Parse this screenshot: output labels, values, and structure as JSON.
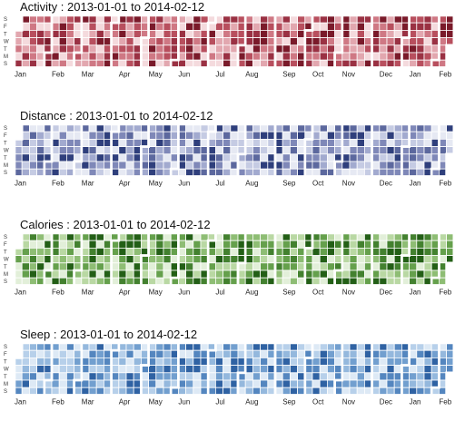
{
  "chart_data": [
    {
      "type": "heatmap",
      "title": "Activity :  2013-01-01 to 2014-02-12",
      "date_range": [
        "2013-01-01",
        "2014-02-12"
      ],
      "day_labels": [
        "S",
        "F",
        "T",
        "W",
        "T",
        "M",
        "S"
      ],
      "month_labels": [
        "Jan",
        "Feb",
        "Mar",
        "Apr",
        "May",
        "Jun",
        "Jul",
        "Aug",
        "Sep",
        "Oct",
        "Nov",
        "Dec",
        "Jan",
        "Feb"
      ],
      "palette": [
        "#f4dadd",
        "#e2a7af",
        "#cf7884",
        "#b84f5e",
        "#9a3143",
        "#7a1a2a"
      ],
      "seed": 11,
      "levels": 6
    },
    {
      "type": "heatmap",
      "title": "Distance :  2013-01-01 to 2014-02-12",
      "date_range": [
        "2013-01-01",
        "2014-02-12"
      ],
      "day_labels": [
        "S",
        "F",
        "T",
        "W",
        "T",
        "M",
        "S"
      ],
      "month_labels": [
        "Jan",
        "Feb",
        "Mar",
        "Apr",
        "May",
        "Jun",
        "Jul",
        "Aug",
        "Sep",
        "Oct",
        "Nov",
        "Dec",
        "Jan",
        "Feb"
      ],
      "palette": [
        "#e6e9f3",
        "#c5cbe3",
        "#a2aacf",
        "#7f88b8",
        "#5c689e",
        "#2f3f7c"
      ],
      "seed": 23,
      "levels": 6
    },
    {
      "type": "heatmap",
      "title": "Calories :  2013-01-01 to 2014-02-12",
      "date_range": [
        "2013-01-01",
        "2014-02-12"
      ],
      "day_labels": [
        "S",
        "F",
        "T",
        "W",
        "T",
        "M",
        "S"
      ],
      "month_labels": [
        "Jan",
        "Feb",
        "Mar",
        "Apr",
        "May",
        "Jun",
        "Jul",
        "Aug",
        "Sep",
        "Oct",
        "Nov",
        "Dec",
        "Jan",
        "Feb"
      ],
      "palette": [
        "#e2efd9",
        "#b9d8a3",
        "#8ebd74",
        "#65a04c",
        "#43812f",
        "#235f16"
      ],
      "seed": 37,
      "levels": 6
    },
    {
      "type": "heatmap",
      "title": "Sleep :  2013-01-01 to 2014-02-12",
      "date_range": [
        "2013-01-01",
        "2014-02-12"
      ],
      "day_labels": [
        "S",
        "F",
        "T",
        "W",
        "T",
        "M",
        "S"
      ],
      "month_labels": [
        "Jan",
        "Feb",
        "Mar",
        "Apr",
        "May",
        "Jun",
        "Jul",
        "Aug",
        "Sep",
        "Oct",
        "Nov",
        "Dec",
        "Jan",
        "Feb"
      ],
      "palette": [
        "#dde9f5",
        "#b7d0ea",
        "#94b8dd",
        "#729fcf",
        "#5486bf",
        "#2f62a3"
      ],
      "seed": 53,
      "levels": 6
    }
  ]
}
